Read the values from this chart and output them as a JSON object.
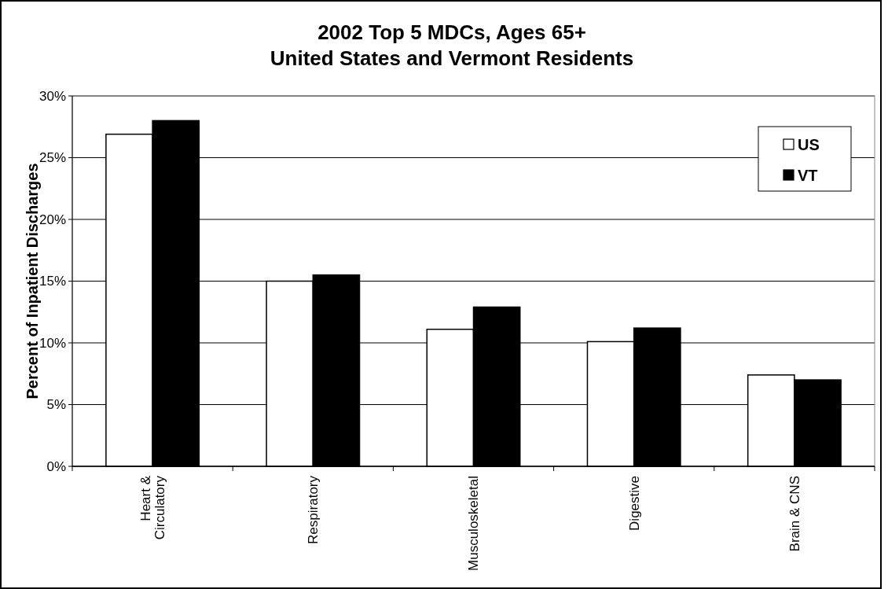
{
  "chart_data": {
    "type": "bar",
    "title": "2002 Top 5 MDCs, Ages 65+\nUnited States and Vermont Residents",
    "ylabel": "Percent of Inpatient Discharges",
    "categories": [
      "Heart & Circulatory",
      "Respiratory",
      "Musculoskeletal",
      "Digestive",
      "Brain & CNS"
    ],
    "series": [
      {
        "name": "US",
        "color": "#ffffff",
        "values": [
          26.9,
          15.0,
          11.1,
          10.1,
          7.4
        ]
      },
      {
        "name": "VT",
        "color": "#000000",
        "values": [
          28.0,
          15.5,
          12.9,
          11.2,
          7.0
        ]
      }
    ],
    "ylim": [
      0,
      30
    ],
    "yticks": [
      {
        "value": 0,
        "label": "0%"
      },
      {
        "value": 5,
        "label": "5%"
      },
      {
        "value": 10,
        "label": "10%"
      },
      {
        "value": 15,
        "label": "15%"
      },
      {
        "value": 20,
        "label": "20%"
      },
      {
        "value": 25,
        "label": "25%"
      },
      {
        "value": 30,
        "label": "30%"
      }
    ],
    "grid": "y",
    "legend": "top right"
  }
}
